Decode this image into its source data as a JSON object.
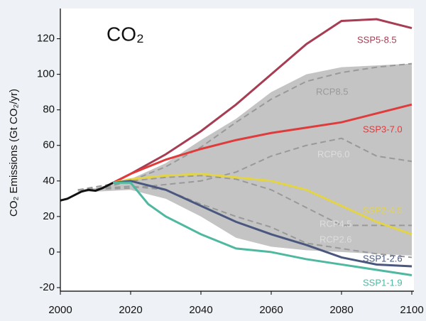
{
  "chart_data": {
    "type": "line",
    "title": "CO₂",
    "y_label": "CO₂ Emissions (Gt CO₂/yr)",
    "xlim": [
      2000,
      2100
    ],
    "ylim": [
      -22,
      137
    ],
    "xticks": [
      2000,
      2020,
      2040,
      2060,
      2080,
      2100
    ],
    "yticks": [
      -20,
      0,
      20,
      40,
      60,
      80,
      100,
      120
    ],
    "range": {
      "color": "#c4c4c4",
      "x": [
        2005,
        2010,
        2020,
        2030,
        2040,
        2050,
        2060,
        2070,
        2080,
        2090,
        2100
      ],
      "upper": [
        35,
        36,
        41,
        50,
        63,
        75,
        90,
        100,
        104,
        105,
        106
      ],
      "lower": [
        34,
        34,
        35,
        30,
        20,
        8,
        3,
        1,
        0,
        -1,
        -2
      ]
    },
    "series": [
      {
        "name": "RCP8.5",
        "color": "#999999",
        "style": "dashed",
        "x": [
          2005,
          2010,
          2020,
          2030,
          2040,
          2050,
          2060,
          2070,
          2080,
          2090,
          2100
        ],
        "values": [
          35,
          35,
          40,
          48,
          59,
          73,
          86,
          96,
          101,
          104,
          106
        ]
      },
      {
        "name": "RCP6.0",
        "color": "#999999",
        "style": "dashed",
        "x": [
          2005,
          2020,
          2030,
          2040,
          2050,
          2060,
          2070,
          2080,
          2090,
          2100
        ],
        "values": [
          35,
          36,
          38,
          40,
          45,
          54,
          60,
          64,
          54,
          51
        ]
      },
      {
        "name": "RCP4.5",
        "color": "#999999",
        "style": "dashed",
        "x": [
          2005,
          2020,
          2030,
          2040,
          2050,
          2060,
          2070,
          2080,
          2090,
          2100
        ],
        "values": [
          35,
          40,
          42,
          43,
          41,
          35,
          25,
          15,
          15,
          15
        ]
      },
      {
        "name": "RCP2.6",
        "color": "#999999",
        "style": "dashed",
        "x": [
          2005,
          2020,
          2030,
          2040,
          2050,
          2060,
          2070,
          2080,
          2090,
          2100
        ],
        "values": [
          35,
          37,
          35,
          27,
          20,
          14,
          5,
          2,
          -1,
          -3
        ]
      },
      {
        "color": "#111111",
        "style": "solid",
        "x": [
          2000,
          2002,
          2004,
          2006,
          2008,
          2010,
          2012,
          2014,
          2015
        ],
        "values": [
          29,
          30,
          32,
          34,
          35,
          34.5,
          36,
          38,
          39
        ]
      },
      {
        "name": "SSP5-8.5",
        "color": "#a63d52",
        "style": "solid",
        "x": [
          2015,
          2020,
          2030,
          2040,
          2050,
          2060,
          2070,
          2080,
          2090,
          2100
        ],
        "values": [
          39,
          44,
          55,
          68,
          83,
          100,
          117,
          130,
          131,
          126
        ]
      },
      {
        "name": "SSP3-7.0",
        "color": "#e03b3b",
        "style": "solid",
        "x": [
          2015,
          2020,
          2030,
          2040,
          2050,
          2060,
          2070,
          2080,
          2090,
          2100
        ],
        "values": [
          39,
          44,
          52,
          58,
          63,
          67,
          70,
          73,
          78,
          83
        ]
      },
      {
        "name": "SSP2-4.5",
        "color": "#e3d447",
        "style": "solid",
        "x": [
          2015,
          2020,
          2030,
          2040,
          2050,
          2060,
          2070,
          2080,
          2090,
          2100
        ],
        "values": [
          39,
          41,
          43,
          44,
          42,
          40,
          35,
          26,
          17,
          10
        ]
      },
      {
        "name": "SSP1-2.6",
        "color": "#4a5880",
        "style": "solid",
        "x": [
          2015,
          2020,
          2030,
          2040,
          2050,
          2060,
          2070,
          2080,
          2090,
          2100
        ],
        "values": [
          39,
          40,
          35,
          26,
          17,
          10,
          4,
          -3,
          -7,
          -8
        ]
      },
      {
        "name": "SSP1-1.9",
        "color": "#4fb8a0",
        "style": "solid",
        "x": [
          2015,
          2020,
          2025,
          2030,
          2040,
          2050,
          2060,
          2070,
          2080,
          2090,
          2100
        ],
        "values": [
          39,
          39,
          27,
          20,
          10,
          2,
          0,
          -4,
          -7,
          -10,
          -13
        ]
      }
    ]
  }
}
